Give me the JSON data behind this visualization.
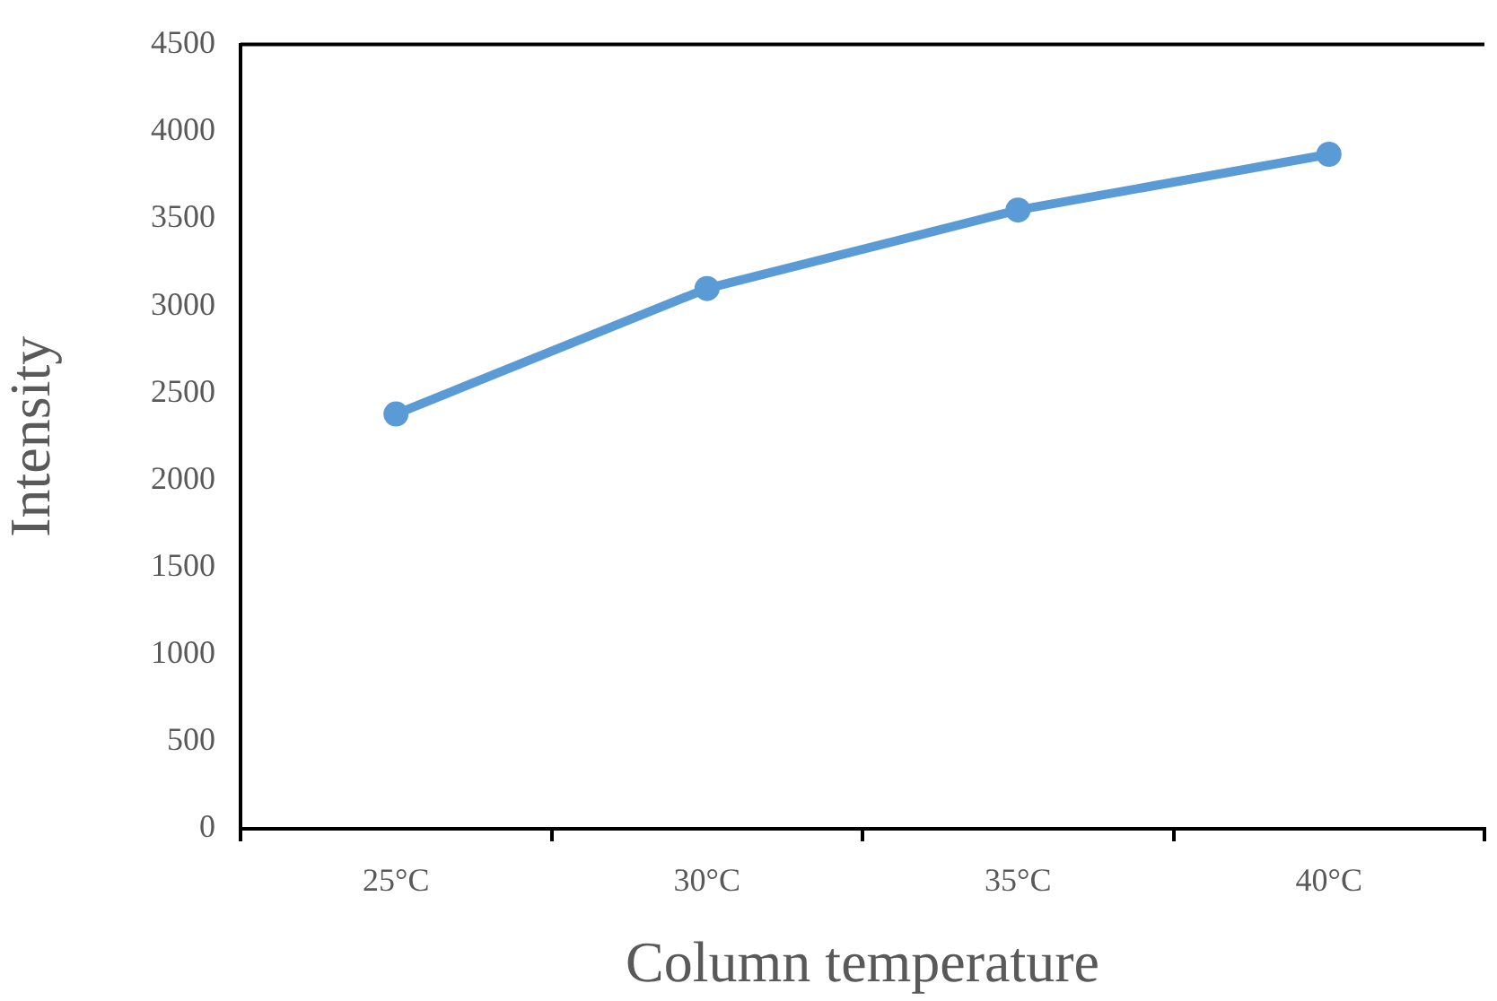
{
  "chart_data": {
    "type": "line",
    "xlabel": "Column temperature",
    "ylabel": "Intensity",
    "categories": [
      "25°C",
      "30°C",
      "35°C",
      "40°C"
    ],
    "series": [
      {
        "color": "#5b9bd5",
        "values": [
          2380,
          3100,
          3550,
          3870
        ]
      }
    ],
    "ylim": [
      0,
      4500
    ],
    "yticks": [
      0,
      500,
      1000,
      1500,
      2000,
      2500,
      3000,
      3500,
      4000,
      4500
    ],
    "grid": false,
    "legend": false,
    "marker": "circle",
    "line_style": "solid"
  }
}
